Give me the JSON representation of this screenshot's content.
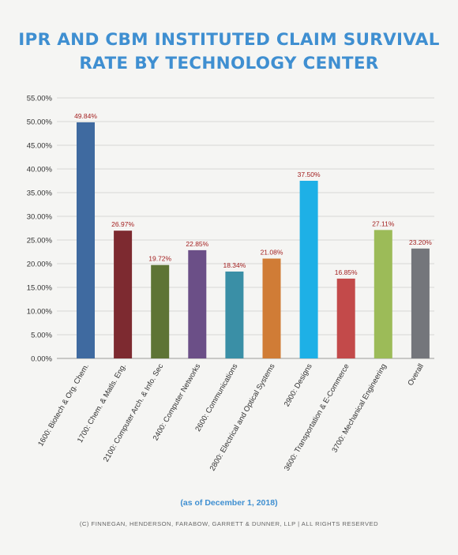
{
  "title_line1": "IPR AND CBM INSTITUTED CLAIM SURVIVAL",
  "title_line2": "RATE BY TECHNOLOGY CENTER",
  "note": "(as of December 1, 2018)",
  "copyright": "(C) FINNEGAN, HENDERSON, FARABOW, GARRETT & DUNNER, LLP | ALL RIGHTS RESERVED",
  "colors": {
    "title": "#3f8fd1",
    "data_label": "#a32020"
  },
  "chart_data": {
    "type": "bar",
    "title": "IPR AND CBM INSTITUTED CLAIM SURVIVAL RATE BY TECHNOLOGY CENTER",
    "xlabel": "",
    "ylabel": "",
    "ylim": [
      0,
      55
    ],
    "ytick_step": 5,
    "ytick_labels": [
      "0.00%",
      "5.00%",
      "10.00%",
      "15.00%",
      "20.00%",
      "25.00%",
      "30.00%",
      "35.00%",
      "40.00%",
      "45.00%",
      "50.00%",
      "55.00%"
    ],
    "grid": true,
    "legend": "none",
    "categories": [
      "1600: Biotech & Org. Chem.",
      "1700: Chem. & Matls. Eng.",
      "2100: Computer Arch. & Info. Sec",
      "2400: Computer Networks",
      "2600: Communications",
      "2800: Electrical and Optical Systems",
      "2900: Designs",
      "3600: Transportation & E-Commerce",
      "3700: Mechanical Engineering",
      "Overall"
    ],
    "values": [
      49.84,
      26.97,
      19.72,
      22.85,
      18.34,
      21.08,
      37.5,
      16.85,
      27.11,
      23.2
    ],
    "data_labels": [
      "49.84%",
      "26.97%",
      "19.72%",
      "22.85%",
      "18.34%",
      "21.08%",
      "37.50%",
      "16.85%",
      "27.11%",
      "23.20%"
    ],
    "bar_colors": [
      "#3f6aa0",
      "#7d2a30",
      "#5e7435",
      "#6b4f87",
      "#3a8fa6",
      "#d07c36",
      "#1eb0e6",
      "#c34a4a",
      "#9cbb58",
      "#74767b"
    ]
  }
}
